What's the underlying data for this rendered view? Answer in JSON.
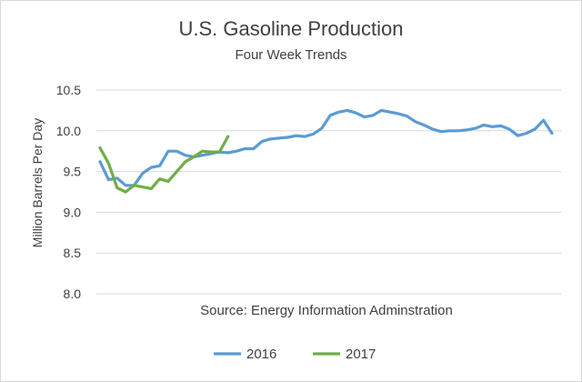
{
  "chart_data": {
    "type": "line",
    "title": "U.S. Gasoline Production",
    "subtitle": "Four Week Trends",
    "xlabel": "",
    "ylabel": "Million Barrels Per Day",
    "ylim": [
      8.0,
      10.5
    ],
    "yticks": [
      "8.0",
      "8.5",
      "9.0",
      "9.5",
      "10.0",
      "10.5"
    ],
    "grid": "horizontal",
    "legend": "bottom",
    "annotation": "Source: Energy Information Adminstration",
    "series": [
      {
        "name": "2016",
        "color": "#5b9bd5",
        "values": [
          9.62,
          9.4,
          9.42,
          9.33,
          9.33,
          9.48,
          9.55,
          9.57,
          9.75,
          9.75,
          9.7,
          9.68,
          9.7,
          9.72,
          9.74,
          9.73,
          9.75,
          9.78,
          9.78,
          9.87,
          9.9,
          9.91,
          9.92,
          9.94,
          9.93,
          9.96,
          10.03,
          10.19,
          10.23,
          10.25,
          10.22,
          10.17,
          10.19,
          10.25,
          10.23,
          10.21,
          10.18,
          10.11,
          10.07,
          10.02,
          9.99,
          10.0,
          10.0,
          10.01,
          10.03,
          10.07,
          10.05,
          10.06,
          10.02,
          9.94,
          9.97,
          10.02,
          10.13,
          9.97
        ]
      },
      {
        "name": "2017",
        "color": "#70ad47",
        "values": [
          9.79,
          9.6,
          9.3,
          9.25,
          9.33,
          9.31,
          9.29,
          9.41,
          9.38,
          9.5,
          9.62,
          9.68,
          9.75,
          9.74,
          9.74,
          9.93
        ]
      }
    ]
  }
}
